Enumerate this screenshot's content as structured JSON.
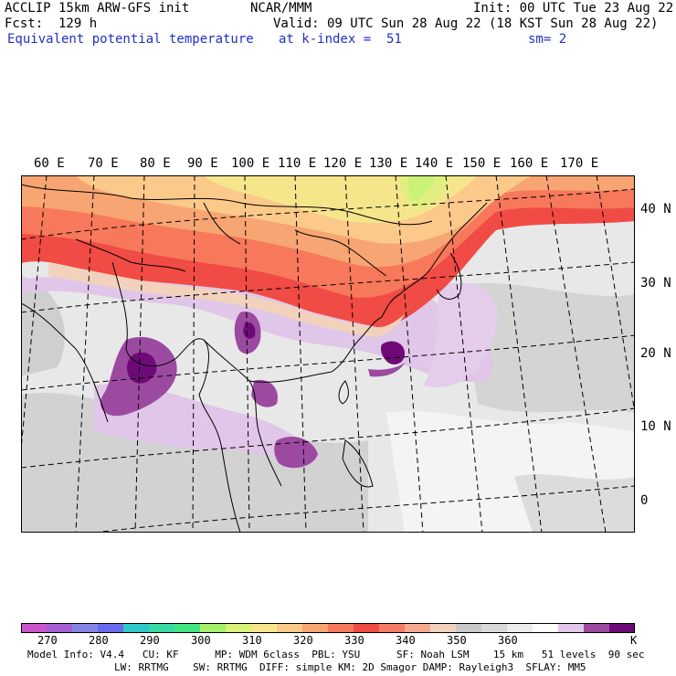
{
  "header": {
    "model_title": "ACCLIP 15km ARW-GFS init",
    "center": "NCAR/MMM",
    "init": "Init: 00 UTC Tue 23 Aug 22",
    "forecast": "Fcst:  129 h",
    "valid": "Valid: 09 UTC Sun 28 Aug 22 (18 KST Sun 28 Aug 22)",
    "field": "Equivalent potential temperature",
    "level": "at k-index =  51",
    "smoothing": "sm= 2"
  },
  "map": {
    "lon_labels": [
      "60 E",
      "70 E",
      "80 E",
      "90 E",
      "100 E",
      "110 E",
      "120 E",
      "130 E",
      "140 E",
      "150 E",
      "160 E",
      "170 E"
    ],
    "lat_labels": [
      "40 N",
      "30 N",
      "20 N",
      "10 N",
      "0"
    ]
  },
  "colorbar": {
    "unit": "K",
    "tick_labels": [
      "270",
      "280",
      "290",
      "300",
      "310",
      "320",
      "330",
      "340",
      "350",
      "360"
    ],
    "colors": [
      "#cc55cc",
      "#a65ed6",
      "#8383e6",
      "#6a6af0",
      "#2ec9c9",
      "#35dba3",
      "#40e67d",
      "#a6f06b",
      "#d9f27a",
      "#f5e68c",
      "#fbc98a",
      "#f7a572",
      "#f7785a",
      "#f04b44",
      "#f77a66",
      "#f7a98f",
      "#f2d2bd",
      "#c9c9c9",
      "#d9d9d9",
      "#ececec",
      "#ffffff",
      "#e0c6e8",
      "#9b4aa0",
      "#6e0a78"
    ]
  },
  "footer": {
    "line1": "Model Info: V4.4   CU: KF      MP: WDM 6class  PBL: YSU      SF: Noah LSM    15 km   51 levels  90 sec",
    "line2": "LW: RRTMG    SW: RRTMG  DIFF: simple KM: 2D Smagor DAMP: Rayleigh3  SFLAY: MM5"
  }
}
